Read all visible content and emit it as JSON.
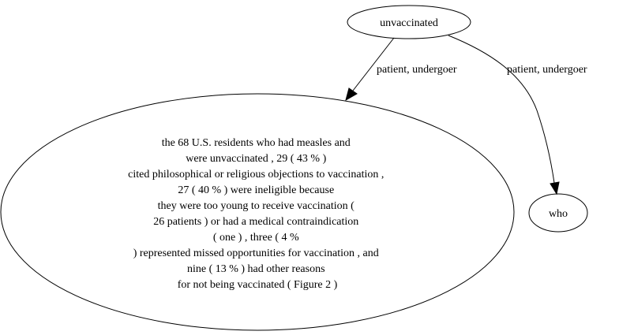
{
  "graph": {
    "nodes": {
      "unvaccinated": {
        "label": "unvaccinated"
      },
      "residents": {
        "lines": [
          "the 68 U.S. residents who had measles and",
          "were unvaccinated , 29 ( 43 % )",
          "cited philosophical or religious objections to vaccination ,",
          "27 ( 40 % ) were ineligible because",
          "they were too young to receive vaccination (",
          "26 patients ) or had a medical contraindication",
          "( one ) , three ( 4 %",
          ") represented missed opportunities for vaccination , and",
          "nine ( 13 % ) had other reasons",
          "for not being vaccinated ( Figure 2 )"
        ]
      },
      "who": {
        "label": "who"
      }
    },
    "edges": {
      "to_residents": {
        "label": "patient, undergoer"
      },
      "to_who": {
        "label": "patient, undergoer"
      }
    }
  }
}
